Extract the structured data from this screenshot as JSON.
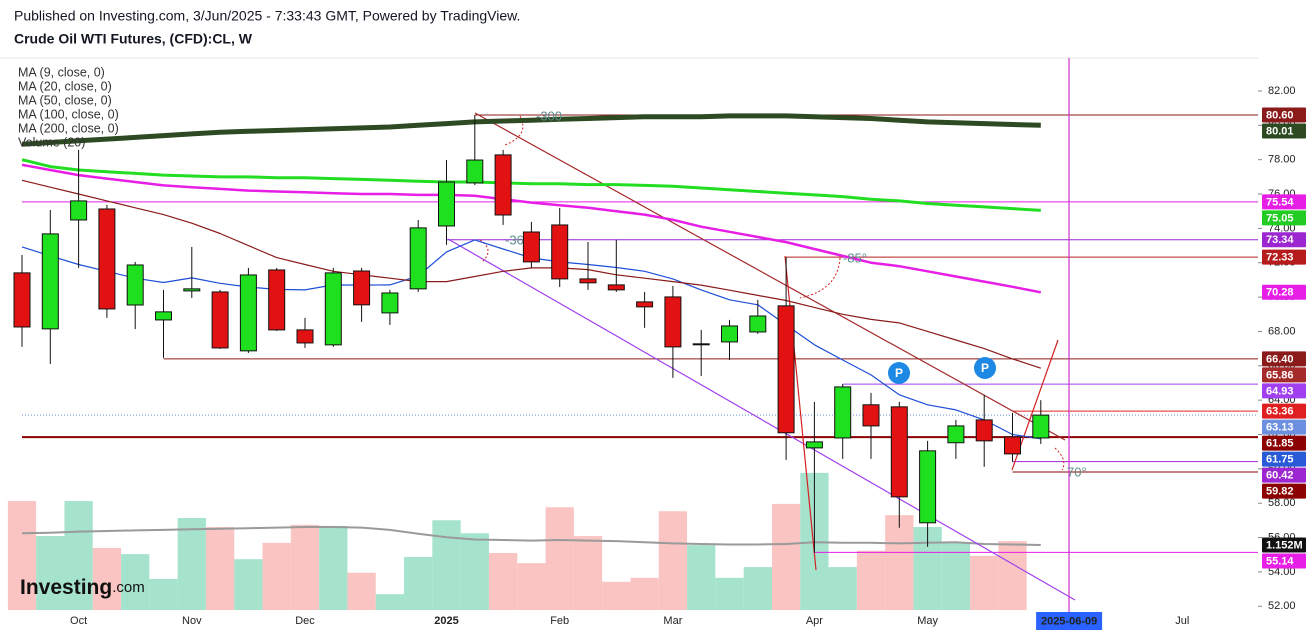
{
  "header": {
    "published": "Published on Investing.com, 3/Jun/2025 - 7:33:43 GMT, Powered by TradingView.",
    "symbol": "Crude Oil WTI Futures, (CFD):CL, W"
  },
  "logo": {
    "brand": "Investing",
    "suffix": ".com"
  },
  "chart_data": {
    "type": "candlestick",
    "categories": [
      null,
      null,
      "Oct",
      null,
      null,
      null,
      "Nov",
      null,
      null,
      null,
      "Dec",
      null,
      null,
      null,
      null,
      "2025",
      null,
      null,
      null,
      "Feb",
      null,
      null,
      null,
      "Mar",
      null,
      null,
      null,
      null,
      "Apr",
      null,
      null,
      null,
      "May",
      null,
      null,
      null,
      null,
      "2025-06-09",
      null,
      null,
      null,
      "Jul"
    ],
    "cursor": "2025-06-09",
    "open": [
      71.41,
      68.15,
      74.49,
      75.13,
      69.54,
      68.67,
      70.36,
      70.3,
      66.87,
      71.58,
      68.09,
      67.22,
      71.52,
      69.08,
      70.48,
      74.14,
      76.65,
      78.28,
      73.79,
      74.2,
      71.06,
      70.71,
      69.72,
      70.01,
      67.28,
      67.39,
      67.97,
      69.49,
      61.22,
      61.8,
      63.73,
      63.61,
      56.86,
      61.52,
      62.85,
      61.86,
      61.8,
      null,
      null,
      null,
      null,
      null
    ],
    "high": [
      72.45,
      75.07,
      78.57,
      75.37,
      72.05,
      70.42,
      72.92,
      70.42,
      71.7,
      71.7,
      68.79,
      71.7,
      71.7,
      70.42,
      74.49,
      77.98,
      80.6,
      78.57,
      74.38,
      75.19,
      73.21,
      73.33,
      70.3,
      70.65,
      68.09,
      68.67,
      69.84,
      72.33,
      63.9,
      64.94,
      64.42,
      63.9,
      61.63,
      62.85,
      64.31,
      63.26,
      64.0,
      null,
      null,
      null,
      null,
      null
    ],
    "low": [
      67.1,
      66.11,
      71.7,
      68.79,
      68.14,
      66.46,
      69.95,
      66.98,
      66.75,
      68.03,
      67.04,
      67.1,
      68.56,
      68.38,
      70.3,
      73.04,
      76.53,
      74.2,
      71.7,
      70.59,
      70.42,
      70.3,
      68.21,
      65.3,
      65.41,
      66.34,
      67.86,
      60.52,
      55.12,
      60.58,
      60.58,
      56.57,
      55.46,
      60.58,
      60.12,
      60.41,
      61.45,
      null,
      null,
      null,
      null,
      null
    ],
    "close": [
      68.26,
      73.68,
      75.6,
      69.31,
      71.87,
      69.14,
      70.48,
      67.04,
      71.29,
      68.09,
      67.33,
      71.41,
      69.55,
      70.24,
      74.03,
      76.7,
      77.98,
      74.78,
      72.05,
      71.06,
      70.83,
      70.42,
      69.43,
      67.1,
      67.28,
      68.32,
      68.9,
      62.1,
      61.57,
      64.77,
      62.5,
      58.37,
      61.05,
      62.5,
      61.63,
      60.87,
      63.13,
      null,
      null,
      null,
      null,
      null
    ],
    "up_color": "#1fe01f",
    "down_color": "#e31212",
    "volume_up_color": "#a5e3cd",
    "volume_down_color": "#f9c4c2",
    "series": [
      {
        "name": "MA (9, close, 0)",
        "color": "#1e4fd8",
        "width": 1.2,
        "values": [
          72.92,
          72.4,
          71.9,
          71.5,
          71.1,
          70.85,
          71.12,
          70.8,
          70.59,
          70.45,
          70.42,
          70.71,
          70.7,
          70.71,
          71.23,
          72.63,
          73.33,
          72.8,
          72.28,
          72.05,
          71.9,
          71.72,
          71.5,
          71.06,
          70.42,
          69.84,
          69.55,
          68.38,
          67.22,
          66.34,
          65.47,
          64.31,
          63.73,
          63.43,
          62.85,
          62.0,
          61.75,
          null,
          null,
          null,
          null,
          null
        ]
      },
      {
        "name": "MA (20, close, 0)",
        "color": "#8b1a1a",
        "width": 1.2,
        "values": [
          76.8,
          76.4,
          76.0,
          75.6,
          75.2,
          74.8,
          74.3,
          73.7,
          73.0,
          72.3,
          71.9,
          71.5,
          71.3,
          71.1,
          70.9,
          70.9,
          71.2,
          71.5,
          71.7,
          71.7,
          71.6,
          71.3,
          71.1,
          70.9,
          70.7,
          70.4,
          70.1,
          69.8,
          69.4,
          69.0,
          68.7,
          68.5,
          68.0,
          67.5,
          67.0,
          66.4,
          65.86,
          null,
          null,
          null,
          null,
          null
        ]
      },
      {
        "name": "MA (50, close, 0)",
        "color": "#e61ee6",
        "width": 2.5,
        "values": [
          77.7,
          77.4,
          77.1,
          76.9,
          76.7,
          76.5,
          76.4,
          76.3,
          76.2,
          76.15,
          76.1,
          76.05,
          76.0,
          76.0,
          75.95,
          75.95,
          75.9,
          75.7,
          75.5,
          75.35,
          75.2,
          75.0,
          74.8,
          74.5,
          74.1,
          73.8,
          73.5,
          73.2,
          72.8,
          72.4,
          72.0,
          71.8,
          71.5,
          71.2,
          70.9,
          70.6,
          70.28,
          null,
          null,
          null,
          null,
          null
        ]
      },
      {
        "name": "MA (100, close, 0)",
        "color": "#22dd22",
        "width": 3,
        "values": [
          78.0,
          77.6,
          77.4,
          77.3,
          77.2,
          77.1,
          77.05,
          77.0,
          77.0,
          76.95,
          76.95,
          76.9,
          76.85,
          76.8,
          76.75,
          76.7,
          76.7,
          76.65,
          76.6,
          76.6,
          76.55,
          76.55,
          76.5,
          76.45,
          76.35,
          76.25,
          76.15,
          76.05,
          75.95,
          75.85,
          75.7,
          75.6,
          75.45,
          75.35,
          75.25,
          75.15,
          75.05,
          null,
          null,
          null,
          null,
          null
        ]
      },
      {
        "name": "MA (200, close, 0)",
        "color": "#2d4a22",
        "width": 5,
        "values": [
          78.9,
          79.0,
          79.1,
          79.2,
          79.3,
          79.4,
          79.5,
          79.6,
          79.65,
          79.7,
          79.75,
          79.8,
          79.85,
          79.9,
          80.0,
          80.1,
          80.2,
          80.25,
          80.3,
          80.35,
          80.4,
          80.45,
          80.5,
          80.5,
          80.5,
          80.55,
          80.55,
          80.55,
          80.5,
          80.45,
          80.4,
          80.3,
          80.2,
          80.15,
          80.1,
          80.05,
          80.01,
          null,
          null,
          null,
          null,
          null
        ]
      }
    ],
    "volume_name": "Volume (20)",
    "volume": [
      1930000,
      1310000,
      1930000,
      1100000,
      990000,
      550000,
      1630000,
      1470000,
      900000,
      1190000,
      1510000,
      1490000,
      660000,
      280000,
      940000,
      1590000,
      1360000,
      1010000,
      830000,
      1820000,
      1310000,
      500000,
      570000,
      1750000,
      1150000,
      570000,
      760000,
      1880000,
      2430000,
      760000,
      1050000,
      1680000,
      1470000,
      1200000,
      960000,
      1220000,
      null,
      null,
      null,
      null,
      null,
      null
    ],
    "volume_ma": [
      1360000,
      1370000,
      1390000,
      1400000,
      1410000,
      1420000,
      1430000,
      1440000,
      1450000,
      1460000,
      1470000,
      1470000,
      1460000,
      1420000,
      1350000,
      1290000,
      1250000,
      1240000,
      1230000,
      1240000,
      1230000,
      1220000,
      1200000,
      1180000,
      1170000,
      1160000,
      1160000,
      1170000,
      1200000,
      1190000,
      1190000,
      1180000,
      1190000,
      1200000,
      1170000,
      1160000,
      1152000,
      null,
      null,
      null,
      null,
      null
    ],
    "volume_ma_color": "#9a9a9a",
    "volume_tag": {
      "label": "1.152M",
      "value": 1152000,
      "color": "#111111"
    },
    "vlim": [
      0,
      3200000
    ],
    "ylim": [
      51.2,
      83.92
    ],
    "yticks": [
      {
        "value": 52,
        "label": "52.00"
      },
      {
        "value": 54,
        "label": "54.00"
      },
      {
        "value": 56,
        "label": "56.00"
      },
      {
        "value": 58,
        "label": "58.00"
      },
      {
        "value": 60,
        "label": "60.00"
      },
      {
        "value": 62,
        "label": "62.00"
      },
      {
        "value": 64,
        "label": "64.00"
      },
      {
        "value": 66,
        "label": "66.00"
      },
      {
        "value": 68,
        "label": "68.00"
      },
      {
        "value": 70,
        "label": "70.00"
      },
      {
        "value": 72,
        "label": "72.00"
      },
      {
        "value": 74,
        "label": "74.00"
      },
      {
        "value": 76,
        "label": "76.00"
      },
      {
        "value": 78,
        "label": "78.00"
      },
      {
        "value": 80,
        "label": "80.00"
      },
      {
        "value": 82,
        "label": "82.00"
      }
    ],
    "price_lines": [
      {
        "label": "80.60",
        "value": 80.6,
        "color": "#8b1a1a",
        "start": 16
      },
      {
        "label": "80.01",
        "value": 80.01,
        "color": "#2d4a22"
      },
      {
        "label": "75.54",
        "value": 75.54,
        "color": "#e61ee6",
        "start": 0
      },
      {
        "label": "75.05",
        "value": 75.05,
        "color": "#22cc22"
      },
      {
        "label": "73.34",
        "value": 73.34,
        "color": "#9c27d0",
        "start": 15
      },
      {
        "label": "72.33",
        "value": 72.33,
        "color": "#b71c1c",
        "start": 27
      },
      {
        "label": "70.28",
        "value": 70.28,
        "color": "#e61ee6"
      },
      {
        "label": "66.40",
        "value": 66.4,
        "color": "#8b1a1a",
        "start": 5
      },
      {
        "label": "65.86",
        "value": 65.86,
        "color": "#a52a2a"
      },
      {
        "label": "64.93",
        "value": 64.93,
        "color": "#a040f0",
        "start": 29
      },
      {
        "label": "63.36",
        "value": 63.36,
        "color": "#e02020",
        "start": 35
      },
      {
        "label": "63.13",
        "value": 63.13,
        "color": "#6d8fe0",
        "start": 0,
        "style": "dotted"
      },
      {
        "label": "61.85",
        "value": 61.85,
        "color": "#8b0000",
        "start": 0,
        "style": "thick"
      },
      {
        "label": "61.75",
        "value": 61.75,
        "color": "#2a5bd7"
      },
      {
        "label": "60.42",
        "value": 60.42,
        "color": "#9c27d0",
        "start": 35
      },
      {
        "label": "59.82",
        "value": 59.82,
        "color": "#8b0000",
        "start": 35
      },
      {
        "label": "55.14",
        "value": 55.14,
        "color": "#e61ee6",
        "start": 28
      }
    ],
    "annotations": [
      "-300",
      "-36",
      "-85°",
      "70°"
    ],
    "markers": [
      "P",
      "P"
    ]
  }
}
